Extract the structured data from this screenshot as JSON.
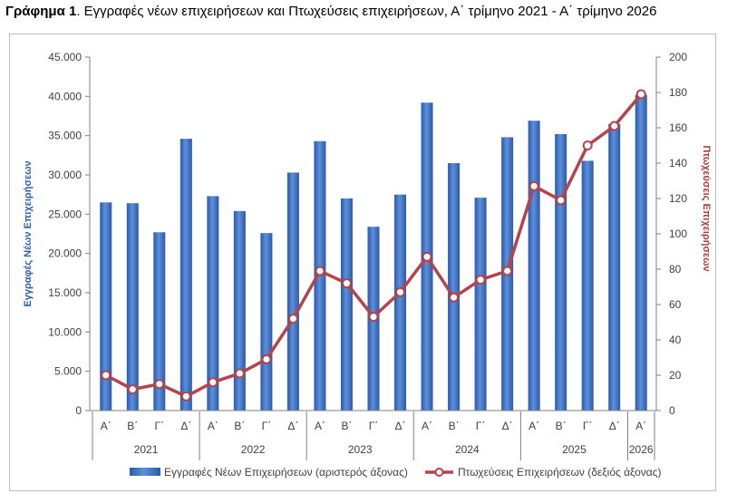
{
  "title": {
    "bold": "Γράφημα 1",
    "rest": ". Εγγραφές νέων επιχειρήσεων και Πτωχεύσεις επιχειρήσεων, Α΄ τρίμηνο 2021 - Α΄ τρίμηνο 2026"
  },
  "chart_data": {
    "type": "bar",
    "categories": [
      "Α΄",
      "Β΄",
      "Γ΄",
      "Δ΄",
      "Α΄",
      "Β΄",
      "Γ΄",
      "Δ΄",
      "Α΄",
      "Β΄",
      "Γ΄",
      "Δ΄",
      "Α΄",
      "Β΄",
      "Γ΄",
      "Δ΄",
      "Α΄",
      "Β΄",
      "Γ΄",
      "Δ΄",
      "Α΄"
    ],
    "years": [
      {
        "label": "2021",
        "count": 4
      },
      {
        "label": "2022",
        "count": 4
      },
      {
        "label": "2023",
        "count": 4
      },
      {
        "label": "2024",
        "count": 4
      },
      {
        "label": "2025",
        "count": 4
      },
      {
        "label": "2026",
        "count": 1
      }
    ],
    "series": [
      {
        "name": "Εγγραφές Νέων Επιχειρήσεων (αριστερός άξονας)",
        "type": "bar",
        "axis": "left",
        "color": "#3a6fc4",
        "values": [
          26500,
          26400,
          22700,
          34600,
          27300,
          25400,
          22600,
          30300,
          34300,
          27000,
          23400,
          27500,
          39200,
          31500,
          27100,
          34800,
          36900,
          35200,
          31800,
          36500,
          40200
        ]
      },
      {
        "name": "Πτωχεύσεις Επιχειρήσεων (δεξιός άξονας)",
        "type": "line",
        "axis": "right",
        "color": "#b5444a",
        "values": [
          20,
          12,
          15,
          8,
          16,
          21,
          29,
          52,
          79,
          72,
          53,
          67,
          87,
          64,
          74,
          79,
          127,
          119,
          150,
          161,
          179
        ]
      }
    ],
    "y_left": {
      "label": "Εγγραφές Νέων Επιχειρήσεων",
      "range": [
        0,
        45000
      ],
      "ticks": [
        "0",
        "5.000",
        "10.000",
        "15.000",
        "20.000",
        "25.000",
        "30.000",
        "35.000",
        "40.000",
        "45.000"
      ]
    },
    "y_right": {
      "label": "Πτωχεύσεις Επιχειρήσεων",
      "range": [
        0,
        200
      ],
      "ticks": [
        "0",
        "20",
        "40",
        "60",
        "80",
        "100",
        "120",
        "140",
        "160",
        "180",
        "200"
      ]
    },
    "grid": false,
    "legend_position": "bottom"
  }
}
